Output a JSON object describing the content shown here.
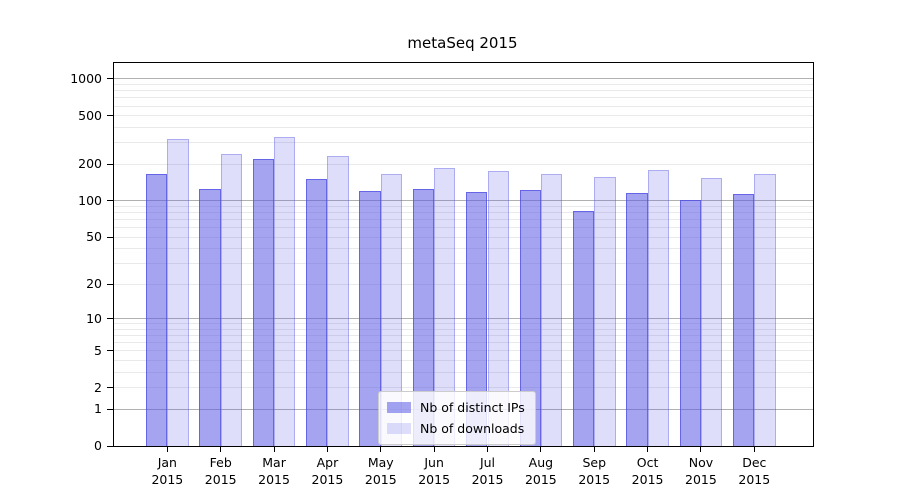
{
  "title": "metaSeq 2015",
  "chart_data": {
    "type": "bar",
    "title": "metaSeq 2015",
    "categories": [
      "Jan",
      "Feb",
      "Mar",
      "Apr",
      "May",
      "Jun",
      "Jul",
      "Aug",
      "Sep",
      "Oct",
      "Nov",
      "Dec"
    ],
    "category_year": "2015",
    "series": [
      {
        "name": "Nb of distinct IPs",
        "fill": "rgba(90,90,230,0.55)",
        "edge": "rgba(80,80,225,0.75)",
        "values": [
          165,
          125,
          220,
          150,
          120,
          126,
          119,
          122,
          83,
          115,
          101,
          113
        ]
      },
      {
        "name": "Nb of downloads",
        "fill": "rgba(90,90,230,0.20)",
        "edge": "rgba(80,80,225,0.35)",
        "values": [
          320,
          242,
          335,
          234,
          166,
          186,
          176,
          166,
          157,
          180,
          154,
          166
        ]
      }
    ],
    "y_ticks": [
      1000,
      500,
      200,
      100,
      50,
      20,
      10,
      5,
      2,
      1,
      0
    ],
    "y_scale": "log1p",
    "y_axis_max": 1350,
    "ylim": [
      0,
      1350
    ],
    "xlabel": "",
    "ylabel": "",
    "grid": {
      "on": true,
      "major_color": "#b0b0b0",
      "minor_color": "#e9e9e9"
    },
    "legend_position": "lower-center"
  }
}
